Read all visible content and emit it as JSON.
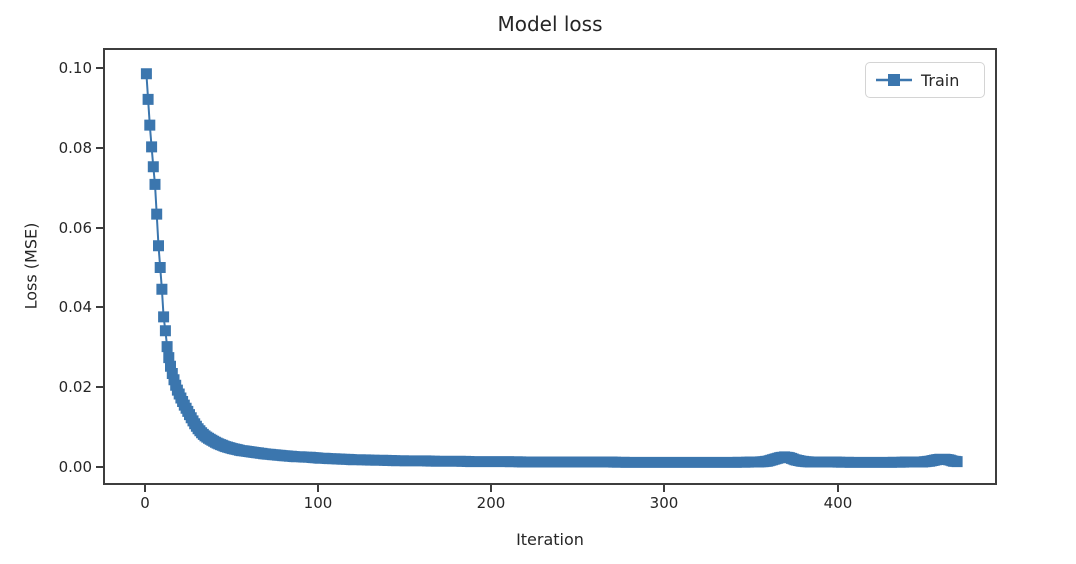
{
  "chart_data": {
    "type": "line",
    "title": "Model loss",
    "xlabel": "Iteration",
    "ylabel": "Loss (MSE)",
    "xlim": [
      -24,
      492
    ],
    "ylim": [
      -0.0045,
      0.105
    ],
    "xticks": [
      0,
      100,
      200,
      300,
      400
    ],
    "xtick_labels": [
      "0",
      "100",
      "200",
      "300",
      "400"
    ],
    "yticks": [
      0.0,
      0.02,
      0.04,
      0.06,
      0.08,
      0.1
    ],
    "ytick_labels": [
      "0.00",
      "0.02",
      "0.04",
      "0.06",
      "0.08",
      "0.10"
    ],
    "grid": false,
    "legend_position": "upper right",
    "marker": "square",
    "line_color": "#3b76ae",
    "series": [
      {
        "name": "Train",
        "points": [
          [
            0,
            0.099
          ],
          [
            1,
            0.0925
          ],
          [
            2,
            0.086
          ],
          [
            3,
            0.0805
          ],
          [
            4,
            0.0755
          ],
          [
            5,
            0.071
          ],
          [
            6,
            0.0635
          ],
          [
            7,
            0.0555
          ],
          [
            8,
            0.05
          ],
          [
            9,
            0.0445
          ],
          [
            10,
            0.0375
          ],
          [
            11,
            0.034
          ],
          [
            12,
            0.03
          ],
          [
            13,
            0.0272
          ],
          [
            14,
            0.025
          ],
          [
            15,
            0.0232
          ],
          [
            16,
            0.0216
          ],
          [
            17,
            0.0202
          ],
          [
            18,
            0.019
          ],
          [
            19,
            0.018
          ],
          [
            20,
            0.017
          ],
          [
            21,
            0.0161
          ],
          [
            22,
            0.0152
          ],
          [
            23,
            0.0144
          ],
          [
            24,
            0.0136
          ],
          [
            25,
            0.0128
          ],
          [
            26,
            0.012
          ],
          [
            27,
            0.0112
          ],
          [
            28,
            0.0105
          ],
          [
            30,
            0.0092
          ],
          [
            32,
            0.0082
          ],
          [
            34,
            0.0074
          ],
          [
            36,
            0.0068
          ],
          [
            38,
            0.0063
          ],
          [
            40,
            0.0058
          ],
          [
            43,
            0.0052
          ],
          [
            46,
            0.0047
          ],
          [
            50,
            0.0042
          ],
          [
            55,
            0.0037
          ],
          [
            60,
            0.0034
          ],
          [
            65,
            0.0031
          ],
          [
            70,
            0.0028
          ],
          [
            75,
            0.0026
          ],
          [
            80,
            0.0024
          ],
          [
            85,
            0.0022
          ],
          [
            90,
            0.0021
          ],
          [
            95,
            0.002
          ],
          [
            100,
            0.0018
          ],
          [
            110,
            0.0016
          ],
          [
            120,
            0.0014
          ],
          [
            130,
            0.0013
          ],
          [
            140,
            0.0012
          ],
          [
            150,
            0.0011
          ],
          [
            160,
            0.0011
          ],
          [
            170,
            0.001
          ],
          [
            180,
            0.001
          ],
          [
            190,
            0.0009
          ],
          [
            200,
            0.0009
          ],
          [
            210,
            0.0009
          ],
          [
            220,
            0.0008
          ],
          [
            230,
            0.0008
          ],
          [
            240,
            0.0008
          ],
          [
            250,
            0.0008
          ],
          [
            260,
            0.0008
          ],
          [
            270,
            0.0008
          ],
          [
            280,
            0.0007
          ],
          [
            290,
            0.0007
          ],
          [
            300,
            0.0007
          ],
          [
            310,
            0.0007
          ],
          [
            320,
            0.0007
          ],
          [
            330,
            0.0007
          ],
          [
            340,
            0.0007
          ],
          [
            350,
            0.0008
          ],
          [
            355,
            0.0008
          ],
          [
            360,
            0.001
          ],
          [
            364,
            0.0015
          ],
          [
            367,
            0.0019
          ],
          [
            370,
            0.0021
          ],
          [
            373,
            0.0019
          ],
          [
            376,
            0.0014
          ],
          [
            380,
            0.001
          ],
          [
            385,
            0.0008
          ],
          [
            390,
            0.0008
          ],
          [
            400,
            0.0008
          ],
          [
            410,
            0.0007
          ],
          [
            420,
            0.0007
          ],
          [
            430,
            0.0007
          ],
          [
            440,
            0.0008
          ],
          [
            450,
            0.0008
          ],
          [
            454,
            0.001
          ],
          [
            457,
            0.0013
          ],
          [
            460,
            0.0015
          ],
          [
            463,
            0.0015
          ],
          [
            466,
            0.0013
          ],
          [
            468,
            0.001
          ],
          [
            470,
            0.0009
          ]
        ]
      }
    ]
  },
  "colors": {
    "line": "#3b76ae",
    "text": "#262626",
    "spine": "#3d3d3d",
    "legend_border": "#d4d4d4",
    "background": "#ffffff"
  }
}
